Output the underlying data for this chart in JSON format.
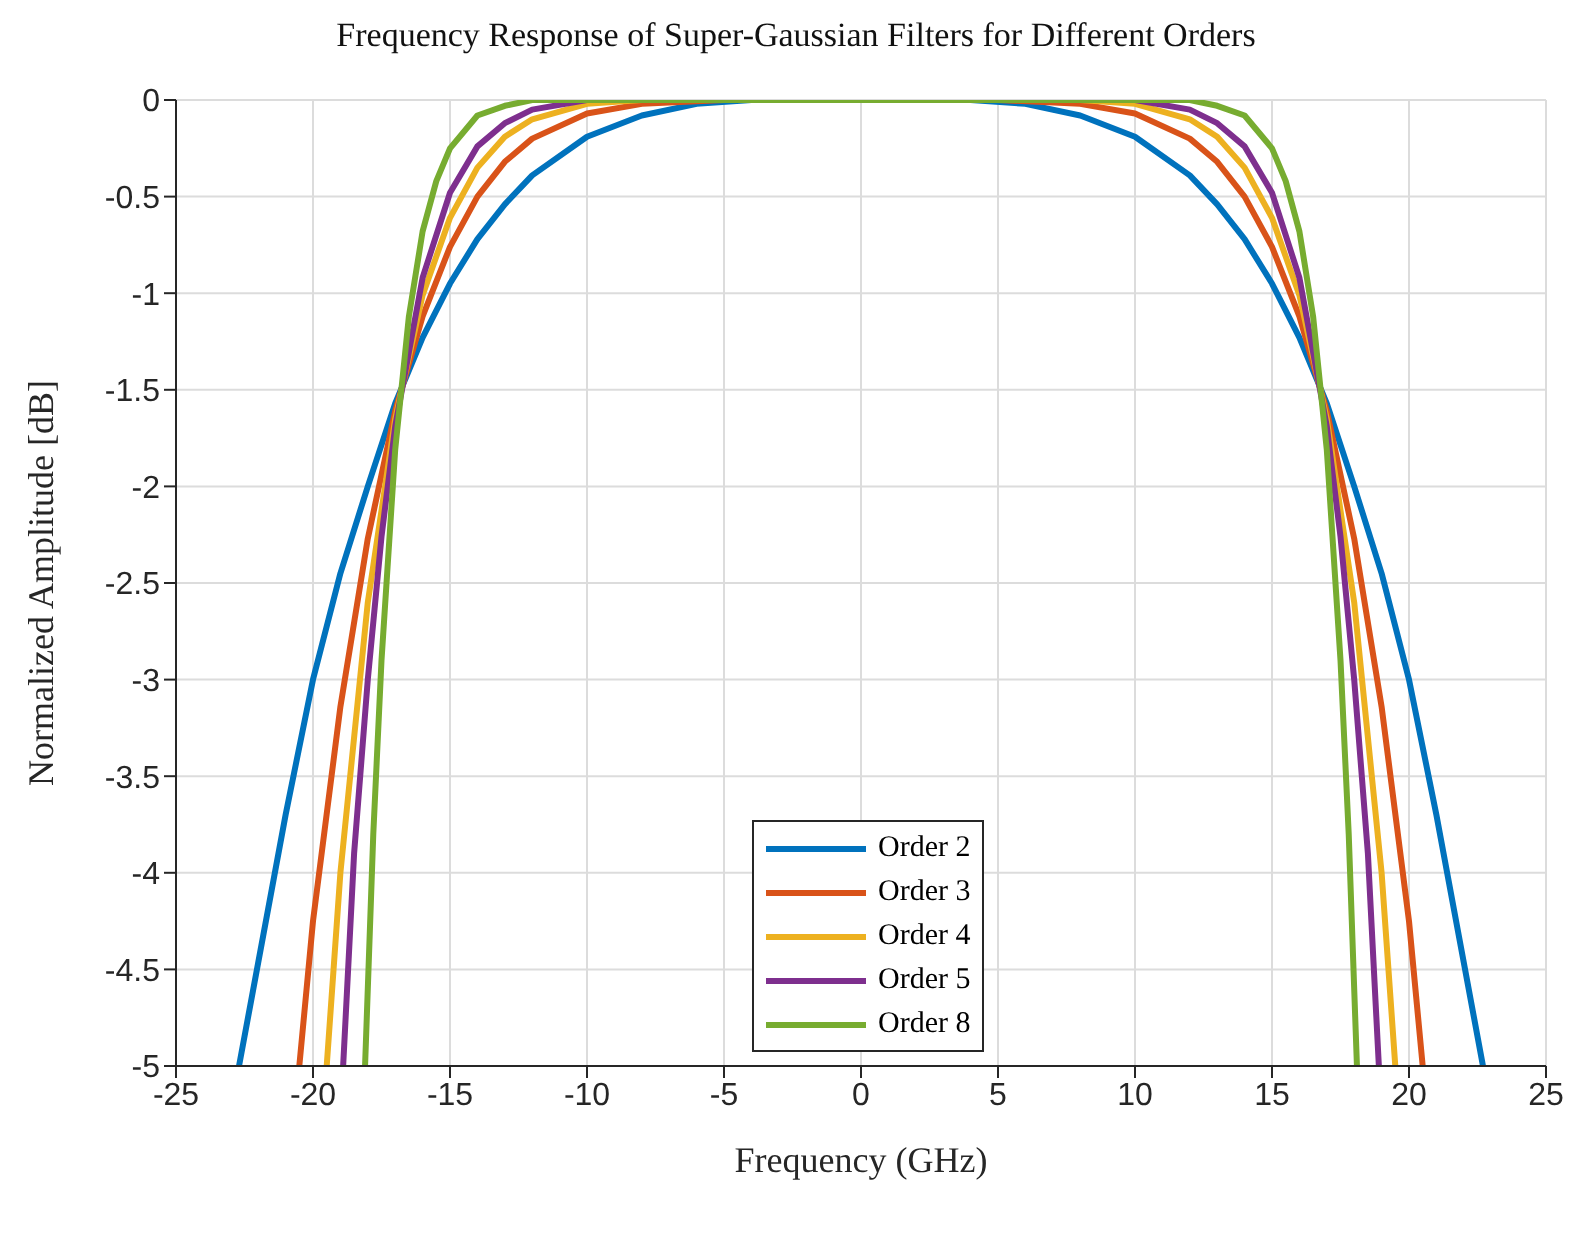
{
  "chart_data": {
    "type": "line",
    "title": "Frequency Response of Super-Gaussian Filters for Different Orders",
    "xlabel": "Frequency (GHz)",
    "ylabel": "Normalized Amplitude [dB]",
    "xlim": [
      -25,
      25
    ],
    "xticks": [
      -25,
      -20,
      -15,
      -10,
      -5,
      0,
      5,
      10,
      15,
      20,
      25
    ],
    "ylim": [
      -5,
      0
    ],
    "yticks": [
      -5,
      -4.5,
      -4,
      -3.5,
      -3,
      -2.5,
      -2,
      -1.5,
      -1,
      -0.5,
      0
    ],
    "grid": true,
    "legend": "bottom",
    "marker": "none",
    "line_style": "solid",
    "series": [
      {
        "name": "Order 2",
        "color": "#0072bd",
        "x": [
          -22.7,
          -21,
          -20,
          -19,
          -18,
          -17,
          -16,
          -15,
          -14,
          -13,
          -12,
          -10,
          -8,
          -6,
          -4,
          0,
          4,
          6,
          8,
          10,
          12,
          13,
          14,
          15,
          16,
          17,
          18,
          19,
          20,
          21,
          22.7
        ],
        "values": [
          -5,
          -3.7,
          -3,
          -2.45,
          -2,
          -1.57,
          -1.23,
          -0.95,
          -0.72,
          -0.54,
          -0.39,
          -0.19,
          -0.08,
          -0.02,
          0,
          0,
          0,
          -0.02,
          -0.08,
          -0.19,
          -0.39,
          -0.54,
          -0.72,
          -0.95,
          -1.23,
          -1.57,
          -2,
          -2.45,
          -3,
          -3.7,
          -5
        ]
      },
      {
        "name": "Order 3",
        "color": "#d95319",
        "x": [
          -20.5,
          -20,
          -19,
          -18,
          -17,
          -16,
          -15,
          -14,
          -13,
          -12,
          -10,
          -8,
          -5,
          0,
          5,
          8,
          10,
          12,
          13,
          14,
          15,
          16,
          17,
          18,
          19,
          20,
          20.5
        ],
        "values": [
          -5,
          -4.25,
          -3.14,
          -2.27,
          -1.61,
          -1.12,
          -0.76,
          -0.5,
          -0.32,
          -0.2,
          -0.07,
          -0.02,
          0,
          0,
          0,
          -0.02,
          -0.07,
          -0.2,
          -0.32,
          -0.5,
          -0.76,
          -1.12,
          -1.61,
          -2.27,
          -3.14,
          -4.25,
          -5
        ]
      },
      {
        "name": "Order 4",
        "color": "#edb120",
        "x": [
          -19.5,
          -19,
          -18,
          -17,
          -16,
          -15,
          -14,
          -13,
          -12,
          -10,
          -8,
          0,
          8,
          10,
          12,
          13,
          14,
          15,
          16,
          17,
          18,
          19,
          19.5
        ],
        "values": [
          -5,
          -4,
          -2.6,
          -1.65,
          -1.01,
          -0.61,
          -0.35,
          -0.19,
          -0.1,
          -0.02,
          0,
          0,
          0,
          -0.02,
          -0.1,
          -0.19,
          -0.35,
          -0.61,
          -1.01,
          -1.65,
          -2.6,
          -4,
          -5
        ]
      },
      {
        "name": "Order 5",
        "color": "#7e2f8e",
        "x": [
          -18.9,
          -18.5,
          -18,
          -17.5,
          -17,
          -16,
          -15,
          -14,
          -13,
          -12,
          -10,
          0,
          10,
          12,
          13,
          14,
          15,
          16,
          17,
          17.5,
          18,
          18.5,
          18.9
        ],
        "values": [
          -5,
          -3.9,
          -3,
          -2.26,
          -1.69,
          -0.92,
          -0.48,
          -0.24,
          -0.12,
          -0.05,
          0,
          0,
          0,
          -0.05,
          -0.12,
          -0.24,
          -0.48,
          -0.92,
          -1.69,
          -2.26,
          -3,
          -3.9,
          -5
        ]
      },
      {
        "name": "Order 8",
        "color": "#77ac30",
        "x": [
          -18.1,
          -17.8,
          -17.5,
          -17,
          -16.5,
          -16,
          -15.5,
          -15,
          -14,
          -13,
          -12,
          0,
          12,
          13,
          14,
          15,
          15.5,
          16,
          16.5,
          17,
          17.5,
          17.8,
          18.1
        ],
        "values": [
          -5,
          -3.8,
          -2.9,
          -1.81,
          -1.12,
          -0.68,
          -0.42,
          -0.25,
          -0.08,
          -0.03,
          0,
          0,
          0,
          -0.03,
          -0.08,
          -0.25,
          -0.42,
          -0.68,
          -1.12,
          -1.81,
          -2.9,
          -3.8,
          -5
        ]
      }
    ]
  }
}
